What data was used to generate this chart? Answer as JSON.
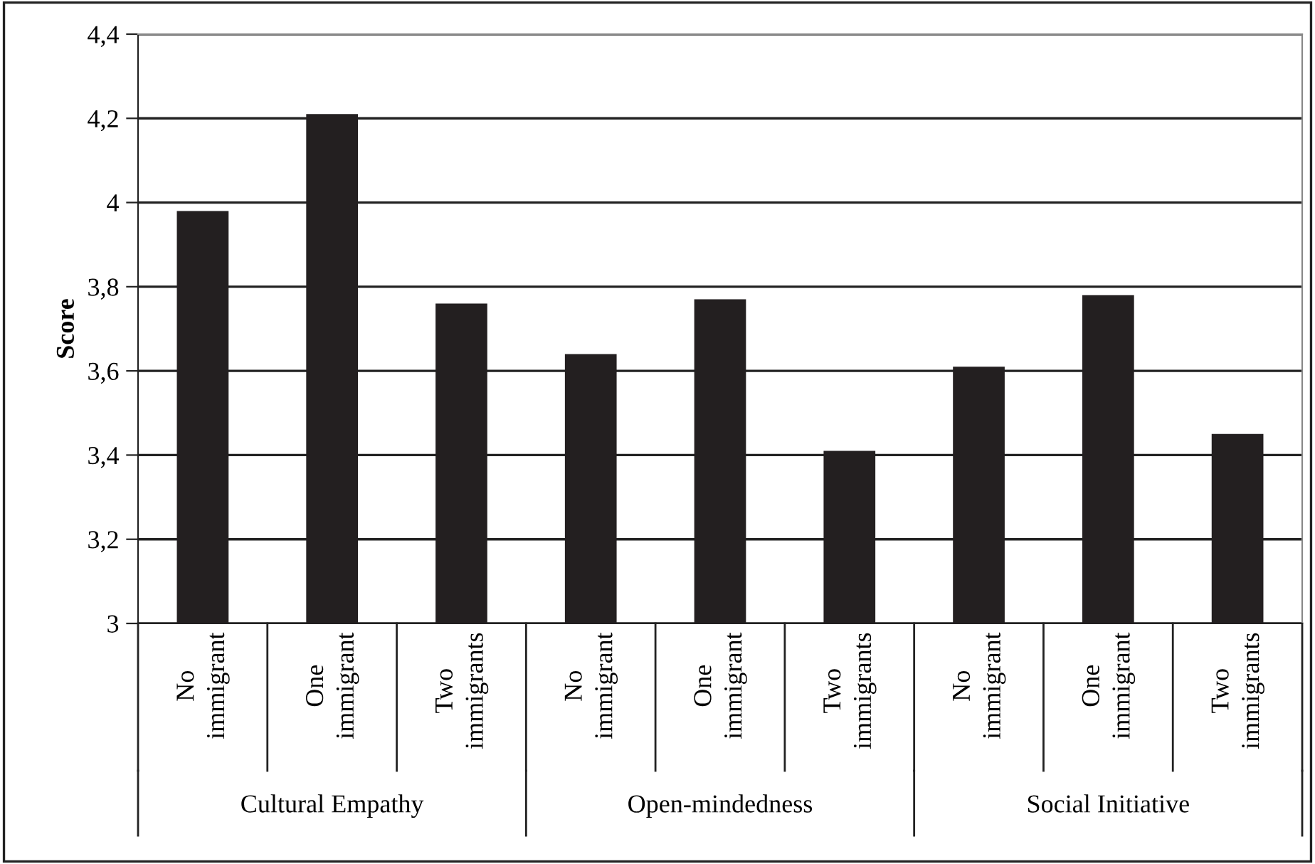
{
  "chart_data": {
    "type": "bar",
    "ylabel": "Score",
    "categories": [
      "No\nimmigrant",
      "One\nimmigrant",
      "Two\nimmigrants",
      "No\nimmigrant",
      "One\nimmigrant",
      "Two\nimmigrants",
      "No\nimmigrant",
      "One\nimmigrant",
      "Two\nimmigrants"
    ],
    "values": [
      3.98,
      4.21,
      3.76,
      3.64,
      3.77,
      3.41,
      3.61,
      3.78,
      3.45
    ],
    "color": "#231f20",
    "ylim": [
      3,
      4.4
    ],
    "yticks": [
      3,
      {
        "value": 3.2,
        "label": "3,2"
      },
      {
        "value": 3.4,
        "label": "3,4"
      },
      {
        "value": 3.6,
        "label": "3,6"
      },
      {
        "value": 3.8,
        "label": "3,8"
      },
      4,
      {
        "value": 4.2,
        "label": "4,2"
      },
      {
        "value": 4.4,
        "label": "4,4"
      }
    ],
    "grid": "y",
    "annotations": [
      "Cultural Empathy",
      "Open-mindedness",
      "Social Initiative"
    ]
  }
}
